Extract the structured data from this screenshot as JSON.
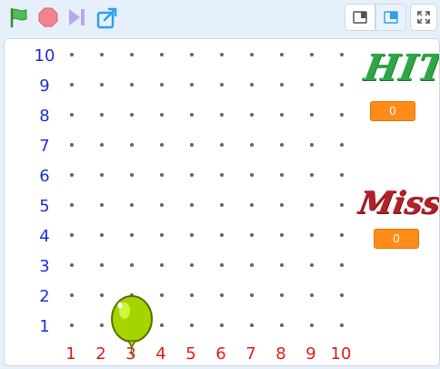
{
  "toolbar": {
    "icons": [
      "green-flag-icon",
      "stop-icon",
      "turbo-icon",
      "share-icon"
    ],
    "modes": [
      "small-stage-icon",
      "large-stage-icon",
      "fullscreen-icon"
    ]
  },
  "stage": {
    "y_labels": [
      "10",
      "9",
      "8",
      "7",
      "6",
      "5",
      "4",
      "3",
      "2",
      "1"
    ],
    "x_labels": [
      "1",
      "2",
      "3",
      "4",
      "5",
      "6",
      "7",
      "8",
      "9",
      "10"
    ],
    "hit": {
      "label": "HIT",
      "value": "0"
    },
    "miss": {
      "label": "Miss",
      "value": "0"
    },
    "colors": {
      "hit": "#2fa645",
      "miss": "#b3202a",
      "y_axis": "#1f2ed8",
      "x_axis": "#e21c1c",
      "balloon": "#a6d400",
      "counter": "#ff8c1a"
    }
  }
}
